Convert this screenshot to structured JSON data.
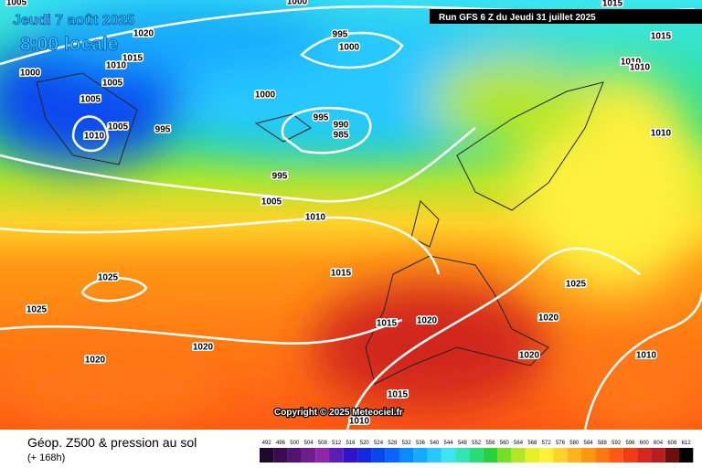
{
  "header": {
    "date": "Jeudi 7 août 2025",
    "time": "8:00 locale",
    "run": "Run GFS 6 Z du Jeudi 31 juillet 2025"
  },
  "copyright": "Copyright © 2025 Meteociel.fr",
  "footer": {
    "title": "Géop. Z500 & pression au sol",
    "lead": "(+ 168h)"
  },
  "isobar_labels": [
    1005,
    1000,
    1015,
    1020,
    1015,
    1010,
    995,
    1000,
    1015,
    1010,
    1010,
    1000,
    1005,
    1000,
    1005,
    1005,
    995,
    995,
    990,
    985,
    1010,
    1010,
    995,
    1005,
    1010,
    1025,
    1015,
    1025,
    1025,
    1015,
    1020,
    1020,
    1020,
    1020,
    1010,
    1020,
    1015,
    1010
  ],
  "scale": {
    "values": [
      492,
      496,
      500,
      504,
      508,
      512,
      516,
      520,
      524,
      528,
      532,
      536,
      540,
      544,
      548,
      552,
      556,
      560,
      564,
      568,
      572,
      576,
      580,
      584,
      588,
      592,
      596,
      600,
      604,
      608,
      612
    ],
    "colors": [
      "#1e0a2e",
      "#3c0a50",
      "#50146e",
      "#6e1e8c",
      "#8c28aa",
      "#5a1eb4",
      "#3214c8",
      "#1428dc",
      "#0a46f0",
      "#0a64ff",
      "#0a8cff",
      "#14aaff",
      "#28c8ff",
      "#3ce6f0",
      "#32e6b4",
      "#28dc78",
      "#28d23c",
      "#78dc28",
      "#b4e628",
      "#e6f028",
      "#fff03c",
      "#ffd228",
      "#ffb41e",
      "#ff9614",
      "#ff7814",
      "#ff5a14",
      "#f03c14",
      "#d2281e",
      "#b41e1e",
      "#6e0f0f",
      "#000000"
    ]
  }
}
